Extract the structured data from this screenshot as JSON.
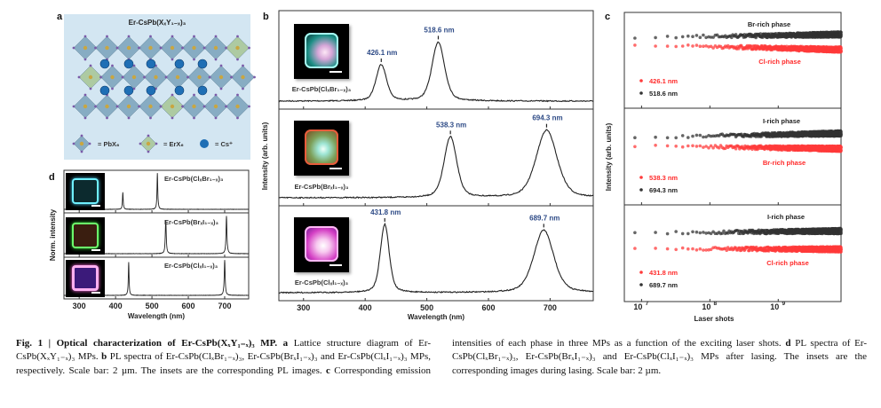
{
  "panels": {
    "a": {
      "label": "a",
      "title": "Er-CsPb(XₓY₁₋ₓ)₃",
      "legend": [
        "= PbX₆",
        "= ErX₆",
        "= Cs⁺"
      ],
      "colors": {
        "background": "#d3e6f2",
        "pb_octahedron": "#7fa6bf",
        "er_octahedron": "#a9c79a",
        "cs": "#1f6fb5",
        "halide": "#7a5aa8",
        "pb": "#c9a640"
      }
    },
    "b": {
      "label": "b"
    },
    "c": {
      "label": "c"
    },
    "d": {
      "label": "d"
    }
  },
  "chart_data": [
    {
      "id": "b",
      "type": "line",
      "xlabel": "Wavelength (nm)",
      "ylabel": "Intensity (arb. units)",
      "xlim": [
        260,
        770
      ],
      "xticks": [
        300,
        400,
        500,
        600,
        700
      ],
      "subplots": [
        {
          "sample": "Er-CsPb(ClₓBr₁₋ₓ)₃",
          "peaks": [
            {
              "center": 426.1,
              "label": "426.1 nm",
              "intensity": 0.37,
              "fwhm": 20
            },
            {
              "center": 518.6,
              "label": "518.6 nm",
              "intensity": 0.6,
              "fwhm": 24
            }
          ]
        },
        {
          "sample": "Er-CsPb(BrₓI₁₋ₓ)₃",
          "peaks": [
            {
              "center": 538.3,
              "label": "538.3 nm",
              "intensity": 0.63,
              "fwhm": 24
            },
            {
              "center": 694.3,
              "label": "694.3 nm",
              "intensity": 0.7,
              "fwhm": 40
            }
          ]
        },
        {
          "sample": "Er-CsPb(ClₓI₁₋ₓ)₃",
          "peaks": [
            {
              "center": 431.8,
              "label": "431.8 nm",
              "intensity": 0.72,
              "fwhm": 17
            },
            {
              "center": 689.7,
              "label": "689.7 nm",
              "intensity": 0.66,
              "fwhm": 38
            }
          ]
        }
      ]
    },
    {
      "id": "c",
      "type": "scatter",
      "xlabel": "Laser shots",
      "ylabel": "Intensity (arb. units)",
      "xscale": "log",
      "xlim": [
        5600000.0,
        8300000000.0
      ],
      "xticks": [
        {
          "value": 10000000.0,
          "base": "10",
          "exp": "7"
        },
        {
          "value": 100000000.0,
          "base": "10",
          "exp": "8"
        },
        {
          "value": 1000000000.0,
          "base": "10",
          "exp": "9"
        }
      ],
      "shot_step": 8000000.0,
      "subplots": [
        {
          "series": [
            {
              "name": "426.1 nm",
              "phase": "Cl-rich phase",
              "color": "#ff3b3b",
              "level": 0.66,
              "trend": -0.05
            },
            {
              "name": "518.6 nm",
              "phase": "Br-rich phase",
              "color": "#333333",
              "level": 0.74,
              "trend": 0.03
            }
          ]
        },
        {
          "series": [
            {
              "name": "538.3 nm",
              "phase": "Br-rich phase",
              "color": "#ff3b3b",
              "level": 0.61,
              "trend": -0.03
            },
            {
              "name": "694.3 nm",
              "phase": "I-rich phase",
              "color": "#333333",
              "level": 0.7,
              "trend": 0.04
            }
          ]
        },
        {
          "series": [
            {
              "name": "431.8 nm",
              "phase": "Cl-rich phase",
              "color": "#ff3b3b",
              "level": 0.55,
              "trend": -0.01
            },
            {
              "name": "689.7 nm",
              "phase": "I-rich phase",
              "color": "#333333",
              "level": 0.71,
              "trend": 0.02
            }
          ]
        }
      ]
    },
    {
      "id": "d",
      "type": "line",
      "xlabel": "Wavelength (nm)",
      "ylabel": "Norm. intensity",
      "xlim": [
        258,
        766
      ],
      "xticks": [
        300,
        400,
        500,
        600,
        700
      ],
      "subplots": [
        {
          "sample": "Er-CsPb(ClₓBr₁₋ₓ)₃",
          "peaks": [
            {
              "center": 420,
              "intensity": 0.4,
              "fwhm": 2.5
            },
            {
              "center": 515,
              "intensity": 0.85,
              "fwhm": 2.5
            }
          ]
        },
        {
          "sample": "Er-CsPb(BrₓI₁₋ₓ)₃",
          "peaks": [
            {
              "center": 538,
              "intensity": 0.75,
              "fwhm": 3
            },
            {
              "center": 705,
              "intensity": 0.85,
              "fwhm": 3
            }
          ]
        },
        {
          "sample": "Er-CsPb(ClₓI₁₋ₓ)₃",
          "peaks": [
            {
              "center": 436,
              "intensity": 0.8,
              "fwhm": 2.5
            },
            {
              "center": 700,
              "intensity": 0.85,
              "fwhm": 3
            }
          ]
        }
      ]
    }
  ],
  "caption": {
    "fig_label": "Fig. 1 | Optical characterization of Er-CsPb(XₓY₁₋ₓ)₃ MP.",
    "a_label": "a",
    "a_text": "Lattice structure diagram of Er-CsPb(XₓY₁₋ₓ)₃ MPs.",
    "b_label": "b",
    "b_text": "PL spectra of Er-CsPb(ClₓBr₁₋ₓ)₃, Er-CsPb(BrₓI₁₋ₓ)₃ and Er-CsPb(ClₓI₁₋ₓ)₃ MPs, respectively. Scale bar: 2 µm. The insets are the corresponding PL images.",
    "c_label": "c",
    "c_text": "Corresponding emission intensities of each phase in three MPs as a function of the exciting laser shots.",
    "d_label": "d",
    "d_text": "PL spectra of Er-CsPb(ClₓBr₁₋ₓ)₃, Er-CsPb(BrₓI₁₋ₓ)₃ and Er-CsPb(ClₓI₁₋ₓ)₃ MPs after lasing. The insets are the corresponding images during lasing. Scale bar: 2 µm."
  }
}
